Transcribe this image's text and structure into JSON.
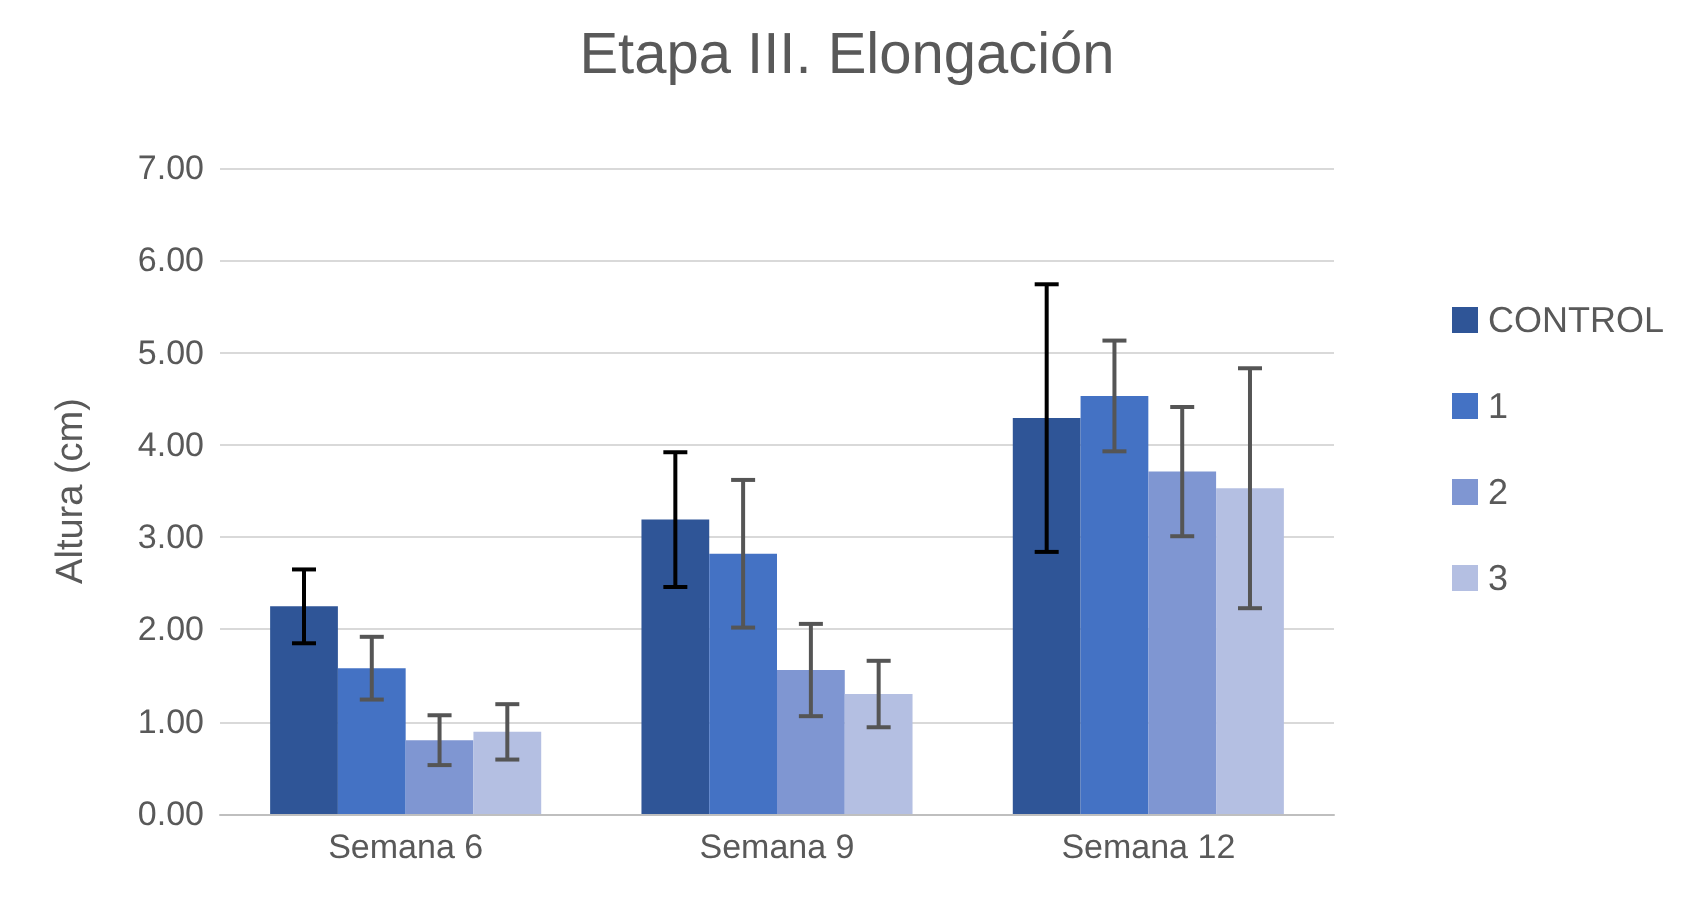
{
  "chart_data": {
    "type": "bar",
    "title": "Etapa III. Elongación",
    "ylabel": "Altura (cm)",
    "categories": [
      "Semana 6",
      "Semana 9",
      "Semana 12"
    ],
    "series": [
      {
        "name": "CONTROL",
        "color": "#2f5597",
        "values": [
          2.25,
          3.19,
          4.29
        ],
        "errors": [
          0.4,
          0.73,
          1.45
        ]
      },
      {
        "name": "1",
        "color": "#4472c4",
        "values": [
          1.58,
          2.82,
          4.53
        ],
        "errors": [
          0.34,
          0.8,
          0.6
        ]
      },
      {
        "name": "2",
        "color": "#7f96d2",
        "values": [
          0.8,
          1.56,
          3.71
        ],
        "errors": [
          0.27,
          0.5,
          0.7
        ]
      },
      {
        "name": "3",
        "color": "#b4bfe2",
        "values": [
          0.89,
          1.3,
          3.53
        ],
        "errors": [
          0.3,
          0.36,
          1.3
        ]
      }
    ],
    "ylim": [
      0,
      7
    ],
    "yticks": [
      {
        "value": 0,
        "label": "0.00"
      },
      {
        "value": 1,
        "label": "1.00"
      },
      {
        "value": 2,
        "label": "2.00"
      },
      {
        "value": 3,
        "label": "3.00"
      },
      {
        "value": 4,
        "label": "4.00"
      },
      {
        "value": 5,
        "label": "5.00"
      },
      {
        "value": 6,
        "label": "6.00"
      },
      {
        "value": 7,
        "label": "7.00"
      }
    ],
    "grid": "y",
    "legend": "right"
  }
}
